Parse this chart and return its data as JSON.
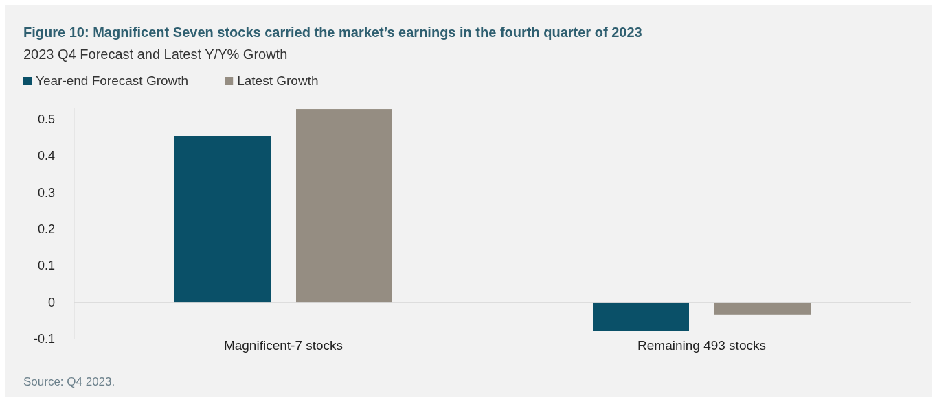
{
  "chart_data": {
    "type": "bar",
    "title": "Figure 10: Magnificent Seven stocks carried the market’s earnings in the fourth quarter of 2023",
    "subtitle": "2023 Q4 Forecast and Latest Y/Y% Growth",
    "categories": [
      "Magnificent-7 stocks",
      "Remaining 493 stocks"
    ],
    "series": [
      {
        "name": "Year-end Forecast Growth",
        "color": "#0a5068",
        "values": [
          0.455,
          -0.078
        ]
      },
      {
        "name": "Latest Growth",
        "color": "#958d82",
        "values": [
          0.528,
          -0.034
        ]
      }
    ],
    "ylim": [
      -0.1,
      0.53
    ],
    "yticks": [
      -0.1,
      0,
      0.1,
      0.2,
      0.3,
      0.4,
      0.5
    ],
    "ref_lines": [
      {
        "axis": "y",
        "value": 0,
        "color": "#d9d9d9"
      }
    ],
    "legend": "top left",
    "annotations": [
      "Source: Q4 2023."
    ]
  }
}
